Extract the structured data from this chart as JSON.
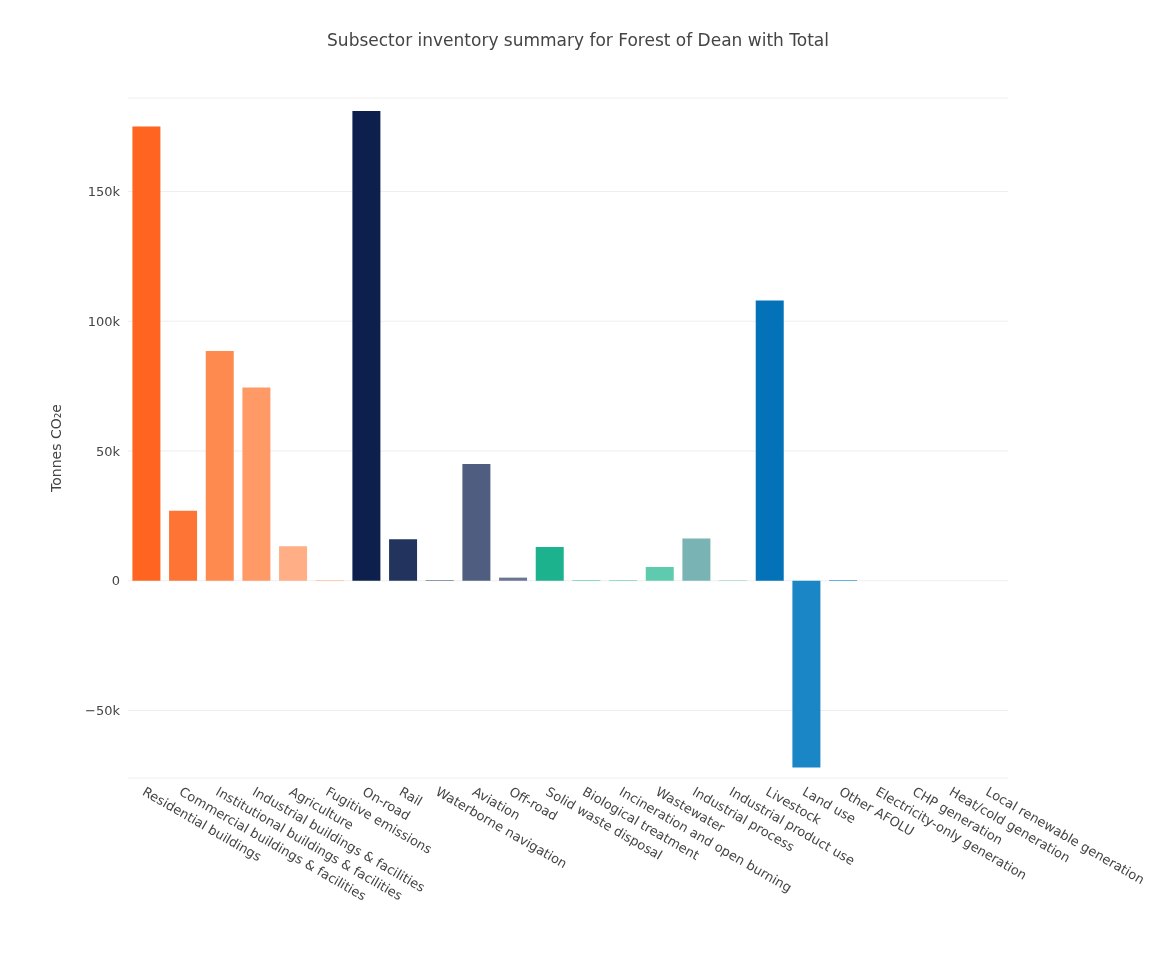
{
  "chart_data": {
    "type": "bar",
    "title": "Subsector inventory summary for Forest of Dean with Total",
    "ylabel": "Tonnes CO₂e",
    "categories": [
      "Residential buildings",
      "Commercial buildings & facilities",
      "Institutional buildings & facilities",
      "Industrial buildings & facilities",
      "Agriculture",
      "Fugitive emissions",
      "On-road",
      "Rail",
      "Waterborne navigation",
      "Aviation",
      "Off-road",
      "Solid waste disposal",
      "Biological treatment",
      "Incineration and open burning",
      "Wastewater",
      "Industrial process",
      "Industrial product use",
      "Livestock",
      "Land use",
      "Other AFOLU",
      "Electricity-only generation",
      "CHP generation",
      "Heat/cold generation",
      "Local renewable generation"
    ],
    "values": [
      175000,
      27000,
      88500,
      74500,
      13300,
      300,
      181000,
      16000,
      200,
      45000,
      1200,
      13000,
      200,
      200,
      5300,
      16300,
      200,
      108000,
      -72000,
      300,
      null,
      null,
      null,
      null
    ],
    "colors": [
      "#ff6420",
      "#fd7435",
      "#ff8a4f",
      "#ff9a66",
      "#ffae85",
      "#ffc0a0",
      "#0d1f4d",
      "#22345e",
      "#36476f",
      "#4f5d80",
      "#6a7591",
      "#1db28e",
      "#2fbf9c",
      "#45c9a8",
      "#5ecbaf",
      "#79b3b3",
      "#8ccfc6",
      "#0372b8",
      "#1a86c5",
      "#3a99d0",
      "#5aa9d8",
      "#7ab8df",
      "#96c7e6",
      "#b0d5ec"
    ],
    "ylim": [
      -76000,
      186000
    ],
    "yticks": [
      {
        "value": -50000,
        "label": "−50k"
      },
      {
        "value": 0,
        "label": "0"
      },
      {
        "value": 50000,
        "label": "50k"
      },
      {
        "value": 100000,
        "label": "100k"
      },
      {
        "value": 150000,
        "label": "150k"
      }
    ],
    "grid": "y"
  }
}
